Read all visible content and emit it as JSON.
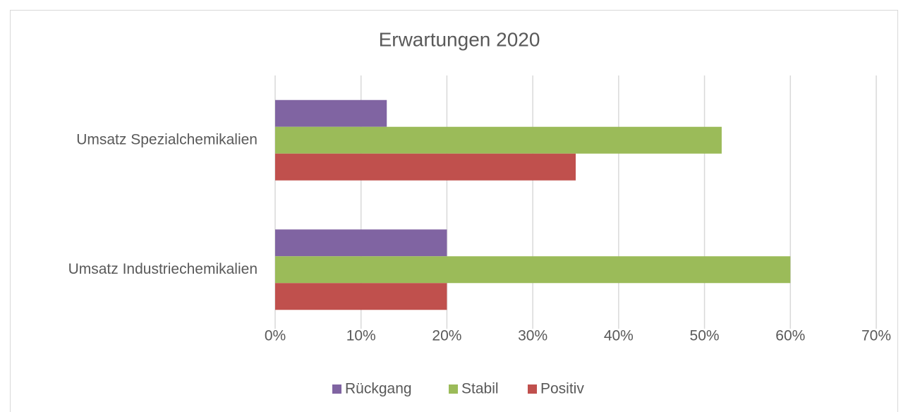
{
  "chart_data": {
    "type": "barh",
    "title": "Erwartungen 2020",
    "categories": [
      "Umsatz Spezialchemikalien",
      "Umsatz Industriechemikalien"
    ],
    "series": [
      {
        "name": "Rückgang",
        "color": "#8064a2",
        "values": [
          13,
          20
        ]
      },
      {
        "name": "Stabil",
        "color": "#9bbb59",
        "values": [
          52,
          60
        ]
      },
      {
        "name": "Positiv",
        "color": "#c0504d",
        "values": [
          35,
          20
        ]
      }
    ],
    "xlim": [
      0,
      70
    ],
    "xticks": [
      {
        "value": 0,
        "label": "0%"
      },
      {
        "value": 10,
        "label": "10%"
      },
      {
        "value": 20,
        "label": "20%"
      },
      {
        "value": 30,
        "label": "30%"
      },
      {
        "value": 40,
        "label": "40%"
      },
      {
        "value": 50,
        "label": "50%"
      },
      {
        "value": 60,
        "label": "60%"
      },
      {
        "value": 70,
        "label": "70%"
      }
    ],
    "grid": true,
    "legend": "bottom"
  }
}
